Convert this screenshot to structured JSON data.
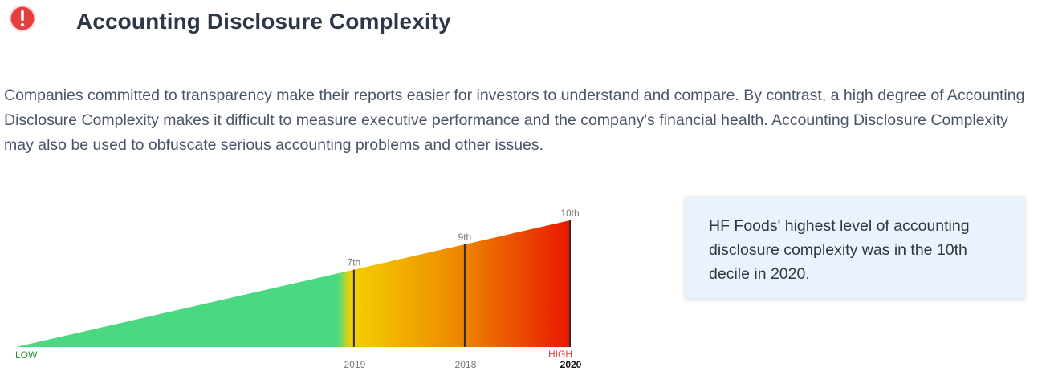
{
  "header": {
    "title": "Accounting Disclosure Complexity",
    "alert_icon": "exclamation-circle-icon",
    "alert_color": "#e53e3e"
  },
  "description": "Companies committed to transparency make their reports easier for investors to understand and compare. By contrast, a high degree of Accounting Disclosure Complexity makes it difficult to measure executive performance and the company's financial health. Accounting Disclosure Complexity may also be used to obfuscate serious accounting problems and other issues.",
  "chart_data": {
    "type": "area",
    "scale": {
      "low_label": "LOW",
      "high_label": "HIGH",
      "min": 0,
      "max": 10
    },
    "gradient_colors": [
      "#4ad880",
      "#f3d000",
      "#ee8800",
      "#e81800"
    ],
    "markers": [
      {
        "year": "2019",
        "decile": 7,
        "label": "7th",
        "highlight": false
      },
      {
        "year": "2018",
        "decile": 9,
        "label": "9th",
        "highlight": false
      },
      {
        "year": "2020",
        "decile": 10,
        "label": "10th",
        "highlight": true
      }
    ]
  },
  "info_card": {
    "text": "HF Foods' highest level of accounting disclosure complexity was in the 10th decile in 2020."
  }
}
